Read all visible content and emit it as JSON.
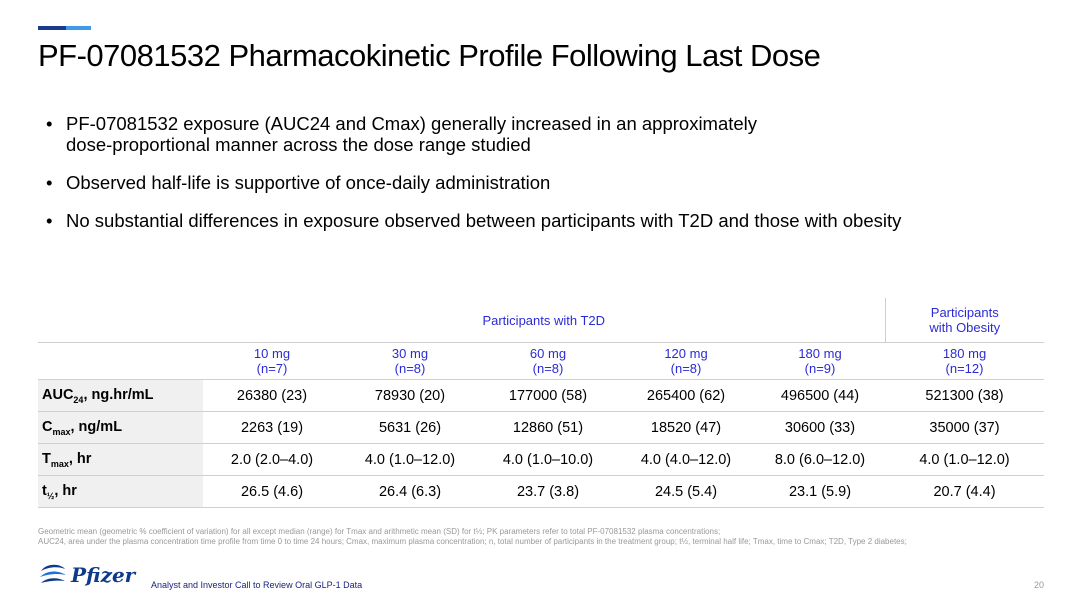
{
  "title": "PF-07081532 Pharmacokinetic Profile Following Last Dose",
  "bullets": [
    [
      "PF-07081532 exposure (AUC24 and Cmax) generally increased in an approximately",
      "dose-proportional manner across the dose range studied"
    ],
    [
      "Observed half-life is supportive of once-daily administration"
    ],
    [
      "No substantial differences in exposure observed between participants with T2D and those with obesity"
    ]
  ],
  "bullet_char": "•",
  "table": {
    "group_t2d": "Participants with T2D",
    "group_obesity": [
      "Participants",
      "with Obesity"
    ],
    "doses": [
      {
        "dose": "10 mg",
        "n": "(n=7)"
      },
      {
        "dose": "30 mg",
        "n": "(n=8)"
      },
      {
        "dose": "60 mg",
        "n": "(n=8)"
      },
      {
        "dose": "120 mg",
        "n": "(n=8)"
      },
      {
        "dose": "180 mg",
        "n": "(n=9)"
      },
      {
        "dose": "180 mg",
        "n": "(n=12)"
      }
    ],
    "rows": [
      {
        "label_main": "AUC",
        "label_sub": "24",
        "label_rest": ", ng.hr/mL",
        "values": [
          "26380 (23)",
          "78930 (20)",
          "177000 (58)",
          "265400 (62)",
          "496500 (44)",
          "521300 (38)"
        ]
      },
      {
        "label_main": "C",
        "label_sub": "max",
        "label_rest": ", ng/mL",
        "values": [
          "2263 (19)",
          "5631 (26)",
          "12860 (51)",
          "18520 (47)",
          "30600 (33)",
          "35000 (37)"
        ]
      },
      {
        "label_main": "T",
        "label_sub": "max",
        "label_rest": ", hr",
        "values": [
          "2.0 (2.0–4.0)",
          "4.0 (1.0–12.0)",
          "4.0 (1.0–10.0)",
          "4.0 (4.0–12.0)",
          "8.0 (6.0–12.0)",
          "4.0 (1.0–12.0)"
        ]
      },
      {
        "label_main": "t",
        "label_sub": "½",
        "label_rest": ", hr",
        "values": [
          "26.5 (4.6)",
          "26.4 (6.3)",
          "23.7 (3.8)",
          "24.5 (5.4)",
          "23.1 (5.9)",
          "20.7 (4.4)"
        ]
      }
    ]
  },
  "footnote": [
    "Geometric mean (geometric % coefficient of variation) for all except median (range) for Tmax and arithmetic mean (SD) for t½; PK parameters refer to total PF-07081532 plasma concentrations;",
    "AUC24, area under the plasma concentration time profile from time 0 to time 24 hours; Cmax, maximum plasma concentration; n, total number of participants in the treatment group; t½, terminal half life; Tmax, time to Cmax; T2D, Type 2 diabetes;"
  ],
  "footer": {
    "logo": "Pfizer",
    "text": "Analyst and Investor Call to Review Oral GLP-1 Data",
    "page_number": "20"
  },
  "colors": {
    "accent_dark": "#1a3a8f",
    "accent_light": "#3d9be8",
    "header_blue": "#2b2bd6",
    "label_bg": "#f0f0f0"
  }
}
